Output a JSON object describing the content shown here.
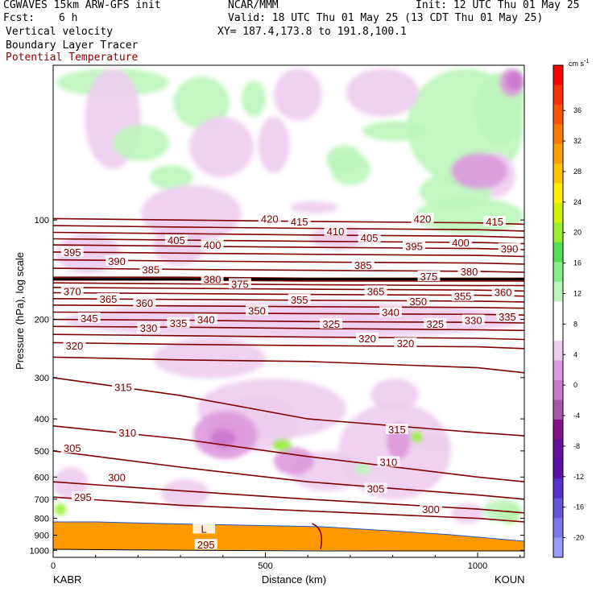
{
  "header": {
    "model": "CGWAVES 15km ARW-GFS init",
    "org": "NCAR/MMM",
    "init": "Init: 12 UTC Thu 01 May 25",
    "fcst_label": "Fcst:",
    "fcst_value": "6 h",
    "valid": "Valid: 18 UTC Thu 01 May 25 (13 CDT Thu 01 May 25)",
    "field1": "Vertical velocity",
    "field2": "Boundary Layer Tracer",
    "field3": "Potential Temperature",
    "xy": "XY= 187.4,173.8 to 191.8,100.1",
    "field3_color": "#8b0000"
  },
  "chart_data": {
    "type": "heatmap",
    "description_source": "cross section",
    "xlabel": "Distance (km)",
    "ylabel": "Pressure (hPa), log scale",
    "xlim": [
      0,
      1110
    ],
    "ylim": [
      1050,
      34
    ],
    "x_ticks": [
      0,
      500,
      1000
    ],
    "y_ticks": [
      100,
      200,
      300,
      400,
      500,
      600,
      700,
      800,
      900,
      1000
    ],
    "endpoints": {
      "left": "KABR",
      "right": "KOUN"
    },
    "colorbar": {
      "unit": "cm s",
      "unit_exp": "-1",
      "labels": [
        36,
        32,
        28,
        24,
        20,
        16,
        12,
        8,
        4,
        0,
        -4,
        -8,
        -12,
        -16,
        -20
      ],
      "colors": [
        "#ff0000",
        "#ff3000",
        "#ff5500",
        "#ff7a00",
        "#ffa000",
        "#ffc400",
        "#ffee00",
        "#d4f000",
        "#99ee33",
        "#55dd55",
        "#88ee88",
        "#bbf5bb",
        "#ffffff",
        "#ffffff",
        "#eeccee",
        "#dd99dd",
        "#cc77cc",
        "#aa55aa",
        "#881188",
        "#661199",
        "#5511aa",
        "#5533cc",
        "#6655dd",
        "#7777ee",
        "#9999ff"
      ]
    },
    "theta_contours": [
      {
        "value": 295,
        "x": [
          0,
          300,
          600,
          1000,
          1110
        ],
        "p": [
          690,
          730,
          760,
          800,
          820
        ]
      },
      {
        "value": 300,
        "x": [
          0,
          300,
          600,
          1000,
          1110
        ],
        "p": [
          620,
          660,
          700,
          750,
          770
        ]
      },
      {
        "value": 305,
        "x": [
          0,
          300,
          600,
          1000,
          1110
        ],
        "p": [
          500,
          560,
          620,
          680,
          700
        ]
      },
      {
        "value": 310,
        "x": [
          0,
          300,
          600,
          1000,
          1110
        ],
        "p": [
          420,
          460,
          520,
          600,
          620
        ]
      },
      {
        "value": 315,
        "x": [
          0,
          300,
          600,
          1000,
          1110
        ],
        "p": [
          300,
          340,
          400,
          440,
          450
        ]
      },
      {
        "value": 320,
        "x": [
          0,
          300,
          600,
          1000,
          1110
        ],
        "p": [
          260,
          265,
          268,
          280,
          290
        ]
      },
      {
        "value": 325,
        "x": [
          0,
          300,
          600,
          1000,
          1110
        ],
        "p": [
          235,
          238,
          240,
          242,
          245
        ]
      },
      {
        "value": 330,
        "x": [
          0,
          300,
          600,
          1000,
          1110
        ],
        "p": [
          222,
          224,
          226,
          228,
          230
        ]
      },
      {
        "value": 335,
        "x": [
          0,
          300,
          600,
          1000,
          1110
        ],
        "p": [
          210,
          211,
          213,
          215,
          216
        ]
      },
      {
        "value": 340,
        "x": [
          0,
          300,
          600,
          1000,
          1110
        ],
        "p": [
          200,
          201,
          203,
          204,
          205
        ]
      },
      {
        "value": 345,
        "x": [
          0,
          300,
          600,
          1000,
          1110
        ],
        "p": [
          190,
          191,
          192,
          193,
          194
        ]
      },
      {
        "value": 350,
        "x": [
          0,
          300,
          600,
          1000,
          1110
        ],
        "p": [
          181,
          182,
          183,
          184,
          185
        ]
      },
      {
        "value": 355,
        "x": [
          0,
          300,
          600,
          1000,
          1110
        ],
        "p": [
          173,
          174,
          175,
          176,
          177
        ]
      },
      {
        "value": 360,
        "x": [
          0,
          300,
          600,
          1000,
          1110
        ],
        "p": [
          166,
          167,
          168,
          169,
          170
        ]
      },
      {
        "value": 365,
        "x": [
          0,
          300,
          600,
          1000,
          1110
        ],
        "p": [
          160,
          161,
          162,
          163,
          164
        ]
      },
      {
        "value": 370,
        "x": [
          0,
          300,
          600,
          1000,
          1110
        ],
        "p": [
          155,
          156,
          157,
          158,
          158
        ]
      },
      {
        "value": 375,
        "x": [
          0,
          300,
          600,
          1000,
          1110
        ],
        "p": [
          152,
          152,
          153,
          153,
          153
        ]
      },
      {
        "value": 380,
        "x": [
          0,
          300,
          600,
          1000,
          1110
        ],
        "p": [
          149,
          149,
          150,
          150,
          150
        ]
      },
      {
        "value": 385,
        "x": [
          0,
          300,
          600,
          1000,
          1110
        ],
        "p": [
          140,
          141,
          142,
          143,
          144
        ]
      },
      {
        "value": 390,
        "x": [
          0,
          300,
          600,
          1000,
          1110
        ],
        "p": [
          132,
          133,
          134,
          135,
          136
        ]
      },
      {
        "value": 395,
        "x": [
          0,
          300,
          600,
          1000,
          1110
        ],
        "p": [
          125,
          126,
          127,
          128,
          129
        ]
      },
      {
        "value": 400,
        "x": [
          0,
          300,
          600,
          1000,
          1110
        ],
        "p": [
          119,
          120,
          121,
          122,
          123
        ]
      },
      {
        "value": 405,
        "x": [
          0,
          300,
          600,
          1000,
          1110
        ],
        "p": [
          114,
          115,
          116,
          117,
          118
        ]
      },
      {
        "value": 410,
        "x": [
          0,
          300,
          600,
          1000,
          1110
        ],
        "p": [
          109,
          110,
          111,
          112,
          113
        ]
      },
      {
        "value": 415,
        "x": [
          0,
          300,
          600,
          1000,
          1110
        ],
        "p": [
          104,
          105,
          106,
          107,
          108
        ]
      },
      {
        "value": 420,
        "x": [
          0,
          300,
          600,
          1000,
          1110
        ],
        "p": [
          99,
          100,
          101,
          102,
          103
        ]
      }
    ],
    "contour_labels": [
      {
        "text": "420",
        "x": 510,
        "p": 99
      },
      {
        "text": "415",
        "x": 580,
        "p": 101
      },
      {
        "text": "410",
        "x": 665,
        "p": 108
      },
      {
        "text": "420",
        "x": 870,
        "p": 99
      },
      {
        "text": "415",
        "x": 1040,
        "p": 101
      },
      {
        "text": "405",
        "x": 290,
        "p": 115
      },
      {
        "text": "400",
        "x": 375,
        "p": 119
      },
      {
        "text": "405",
        "x": 745,
        "p": 113
      },
      {
        "text": "395",
        "x": 850,
        "p": 120
      },
      {
        "text": "400",
        "x": 960,
        "p": 117
      },
      {
        "text": "390",
        "x": 1075,
        "p": 122
      },
      {
        "text": "395",
        "x": 45,
        "p": 125
      },
      {
        "text": "390",
        "x": 150,
        "p": 133
      },
      {
        "text": "385",
        "x": 230,
        "p": 141
      },
      {
        "text": "385",
        "x": 730,
        "p": 137
      },
      {
        "text": "380",
        "x": 980,
        "p": 143
      },
      {
        "text": "380",
        "x": 375,
        "p": 151
      },
      {
        "text": "375",
        "x": 440,
        "p": 156
      },
      {
        "text": "375",
        "x": 885,
        "p": 148
      },
      {
        "text": "370",
        "x": 45,
        "p": 164
      },
      {
        "text": "365",
        "x": 130,
        "p": 173
      },
      {
        "text": "360",
        "x": 215,
        "p": 178
      },
      {
        "text": "365",
        "x": 760,
        "p": 164
      },
      {
        "text": "355",
        "x": 580,
        "p": 174
      },
      {
        "text": "350",
        "x": 860,
        "p": 176
      },
      {
        "text": "355",
        "x": 965,
        "p": 170
      },
      {
        "text": "360",
        "x": 1060,
        "p": 165
      },
      {
        "text": "350",
        "x": 480,
        "p": 188
      },
      {
        "text": "340",
        "x": 360,
        "p": 200
      },
      {
        "text": "335",
        "x": 295,
        "p": 205
      },
      {
        "text": "345",
        "x": 85,
        "p": 198
      },
      {
        "text": "330",
        "x": 225,
        "p": 212
      },
      {
        "text": "340",
        "x": 795,
        "p": 190
      },
      {
        "text": "325",
        "x": 655,
        "p": 206
      },
      {
        "text": "325",
        "x": 900,
        "p": 206
      },
      {
        "text": "330",
        "x": 990,
        "p": 201
      },
      {
        "text": "335",
        "x": 1070,
        "p": 196
      },
      {
        "text": "320",
        "x": 740,
        "p": 228
      },
      {
        "text": "320",
        "x": 830,
        "p": 236
      },
      {
        "text": "320",
        "x": 50,
        "p": 240
      },
      {
        "text": "315",
        "x": 165,
        "p": 320
      },
      {
        "text": "315",
        "x": 810,
        "p": 430
      },
      {
        "text": "310",
        "x": 175,
        "p": 440
      },
      {
        "text": "310",
        "x": 790,
        "p": 540
      },
      {
        "text": "305",
        "x": 45,
        "p": 490
      },
      {
        "text": "305",
        "x": 760,
        "p": 650
      },
      {
        "text": "300",
        "x": 150,
        "p": 600
      },
      {
        "text": "300",
        "x": 890,
        "p": 750
      },
      {
        "text": "295",
        "x": 70,
        "p": 690
      },
      {
        "text": "295",
        "x": 360,
        "p": 960
      },
      {
        "text": "L",
        "x": 355,
        "p": 860
      }
    ],
    "tropopause_p": 151
  }
}
